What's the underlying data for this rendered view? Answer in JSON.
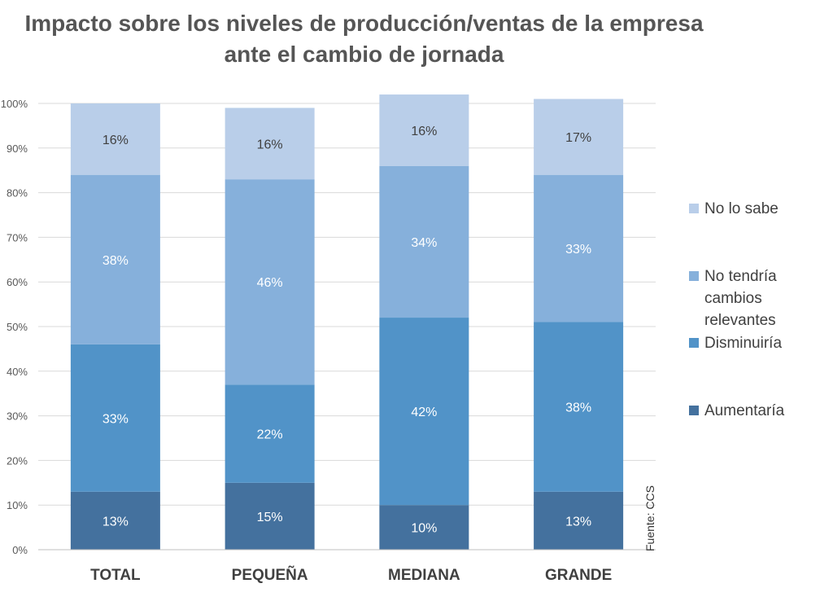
{
  "chart_data": {
    "type": "bar",
    "stacked": true,
    "title_lines": [
      "Impacto sobre los niveles de producción/ventas de la empresa",
      "ante el cambio de jornada"
    ],
    "categories": [
      "TOTAL",
      "PEQUEÑA",
      "MEDIANA",
      "GRANDE"
    ],
    "series": [
      {
        "name": "Aumentaría",
        "values": [
          13,
          15,
          10,
          13
        ],
        "labels": [
          "13%",
          "15%",
          "10%",
          "13%"
        ],
        "color": "#44719e"
      },
      {
        "name": "Disminuiría",
        "values": [
          33,
          22,
          42,
          38
        ],
        "labels": [
          "33%",
          "22%",
          "42%",
          "38%"
        ],
        "color": "#5193c8"
      },
      {
        "name": "No tendría cambios relevantes",
        "values": [
          38,
          46,
          34,
          33
        ],
        "labels": [
          "38%",
          "46%",
          "34%",
          "33%"
        ],
        "color": "#86b0db"
      },
      {
        "name": "No lo sabe",
        "values": [
          16,
          16,
          16,
          17
        ],
        "labels": [
          "16%",
          "16%",
          "16%",
          "17%"
        ],
        "color": "#b9cee9"
      }
    ],
    "ylim": [
      0,
      100
    ],
    "yticks": [
      0,
      10,
      20,
      30,
      40,
      50,
      60,
      70,
      80,
      90,
      100
    ],
    "ytick_labels": [
      "0%",
      "10%",
      "20%",
      "30%",
      "40%",
      "50%",
      "60%",
      "70%",
      "80%",
      "90%",
      "100%"
    ],
    "grid": true,
    "legend_position": "right",
    "legend_order": [
      "No lo sabe",
      "No tendría cambios relevantes",
      "Disminuiría",
      "Aumentaría"
    ],
    "label_colors": {
      "dark": "#ffffff",
      "light": "#404040"
    }
  },
  "source_note": "Fuente: CCS"
}
